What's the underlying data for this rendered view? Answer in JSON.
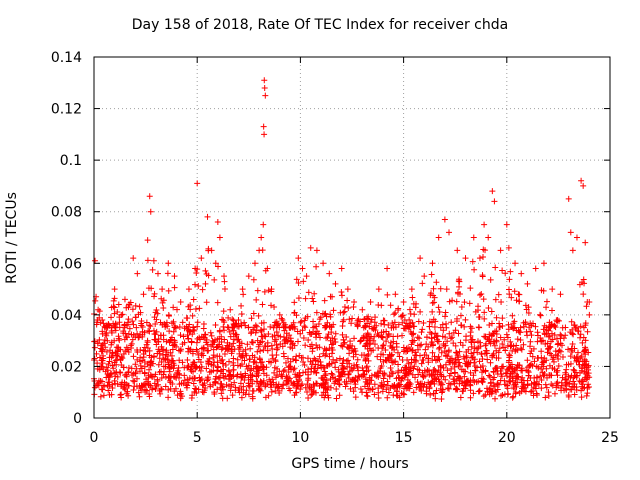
{
  "chart_data": {
    "type": "scatter",
    "title": "Day 158 of 2018, Rate Of TEC Index for receiver chda",
    "xlabel": "GPS time / hours",
    "ylabel": "ROTI / TECUs",
    "xlim": [
      0,
      25
    ],
    "ylim": [
      0,
      0.14
    ],
    "xticks": [
      0,
      5,
      10,
      15,
      20,
      25
    ],
    "xtick_labels": [
      "0",
      "5",
      "10",
      "15",
      "20",
      "25"
    ],
    "yticks": [
      0,
      0.02,
      0.04,
      0.06,
      0.08,
      0.1,
      0.12,
      0.14
    ],
    "ytick_labels": [
      "0",
      "0.02",
      "0.04",
      "0.06",
      "0.08",
      "0.1",
      "0.12",
      "0.14"
    ],
    "grid": true,
    "marker": "+",
    "color": "#ff0000",
    "data_coverage_hours": [
      0,
      24
    ],
    "typical_band": [
      0.01,
      0.035
    ],
    "series": [
      {
        "name": "ROTI",
        "points": [
          [
            0.05,
            0.061
          ],
          [
            0.1,
            0.047
          ],
          [
            0.2,
            0.042
          ],
          [
            0.4,
            0.038
          ],
          [
            0.7,
            0.036
          ],
          [
            1.0,
            0.05
          ],
          [
            1.2,
            0.044
          ],
          [
            1.5,
            0.046
          ],
          [
            1.9,
            0.062
          ],
          [
            2.1,
            0.056
          ],
          [
            2.4,
            0.048
          ],
          [
            2.6,
            0.069
          ],
          [
            2.7,
            0.086
          ],
          [
            2.75,
            0.08
          ],
          [
            2.9,
            0.061
          ],
          [
            3.1,
            0.056
          ],
          [
            3.3,
            0.05
          ],
          [
            3.6,
            0.06
          ],
          [
            3.9,
            0.055
          ],
          [
            4.2,
            0.045
          ],
          [
            4.6,
            0.05
          ],
          [
            4.9,
            0.058
          ],
          [
            5.0,
            0.091
          ],
          [
            5.2,
            0.062
          ],
          [
            5.4,
            0.052
          ],
          [
            5.5,
            0.078
          ],
          [
            5.7,
            0.065
          ],
          [
            5.9,
            0.06
          ],
          [
            6.0,
            0.076
          ],
          [
            6.1,
            0.07
          ],
          [
            6.3,
            0.055
          ],
          [
            6.6,
            0.042
          ],
          [
            7.0,
            0.038
          ],
          [
            7.2,
            0.05
          ],
          [
            7.5,
            0.055
          ],
          [
            7.8,
            0.06
          ],
          [
            8.0,
            0.065
          ],
          [
            8.1,
            0.07
          ],
          [
            8.2,
            0.075
          ],
          [
            8.25,
            0.131
          ],
          [
            8.27,
            0.128
          ],
          [
            8.3,
            0.125
          ],
          [
            8.22,
            0.113
          ],
          [
            8.24,
            0.11
          ],
          [
            8.4,
            0.058
          ],
          [
            8.6,
            0.05
          ],
          [
            9.0,
            0.04
          ],
          [
            9.5,
            0.035
          ],
          [
            9.9,
            0.062
          ],
          [
            10.1,
            0.058
          ],
          [
            10.3,
            0.055
          ],
          [
            10.5,
            0.066
          ],
          [
            10.8,
            0.065
          ],
          [
            11.1,
            0.06
          ],
          [
            11.4,
            0.056
          ],
          [
            11.7,
            0.052
          ],
          [
            12.0,
            0.058
          ],
          [
            12.3,
            0.05
          ],
          [
            12.6,
            0.045
          ],
          [
            13.0,
            0.042
          ],
          [
            13.4,
            0.045
          ],
          [
            13.8,
            0.05
          ],
          [
            14.2,
            0.058
          ],
          [
            14.6,
            0.048
          ],
          [
            15.0,
            0.045
          ],
          [
            15.4,
            0.05
          ],
          [
            15.8,
            0.062
          ],
          [
            16.0,
            0.055
          ],
          [
            16.4,
            0.06
          ],
          [
            16.7,
            0.07
          ],
          [
            17.0,
            0.077
          ],
          [
            17.2,
            0.072
          ],
          [
            17.6,
            0.065
          ],
          [
            18.0,
            0.062
          ],
          [
            18.4,
            0.07
          ],
          [
            18.7,
            0.062
          ],
          [
            18.9,
            0.075
          ],
          [
            19.1,
            0.07
          ],
          [
            19.3,
            0.088
          ],
          [
            19.4,
            0.084
          ],
          [
            19.7,
            0.065
          ],
          [
            20.0,
            0.075
          ],
          [
            20.1,
            0.066
          ],
          [
            20.4,
            0.06
          ],
          [
            20.7,
            0.056
          ],
          [
            21.0,
            0.052
          ],
          [
            21.4,
            0.058
          ],
          [
            21.8,
            0.06
          ],
          [
            22.2,
            0.05
          ],
          [
            22.6,
            0.048
          ],
          [
            23.0,
            0.085
          ],
          [
            23.1,
            0.072
          ],
          [
            23.2,
            0.065
          ],
          [
            23.4,
            0.07
          ],
          [
            23.6,
            0.092
          ],
          [
            23.7,
            0.09
          ],
          [
            23.8,
            0.068
          ],
          [
            23.9,
            0.045
          ],
          [
            24.0,
            0.04
          ]
        ]
      }
    ]
  }
}
